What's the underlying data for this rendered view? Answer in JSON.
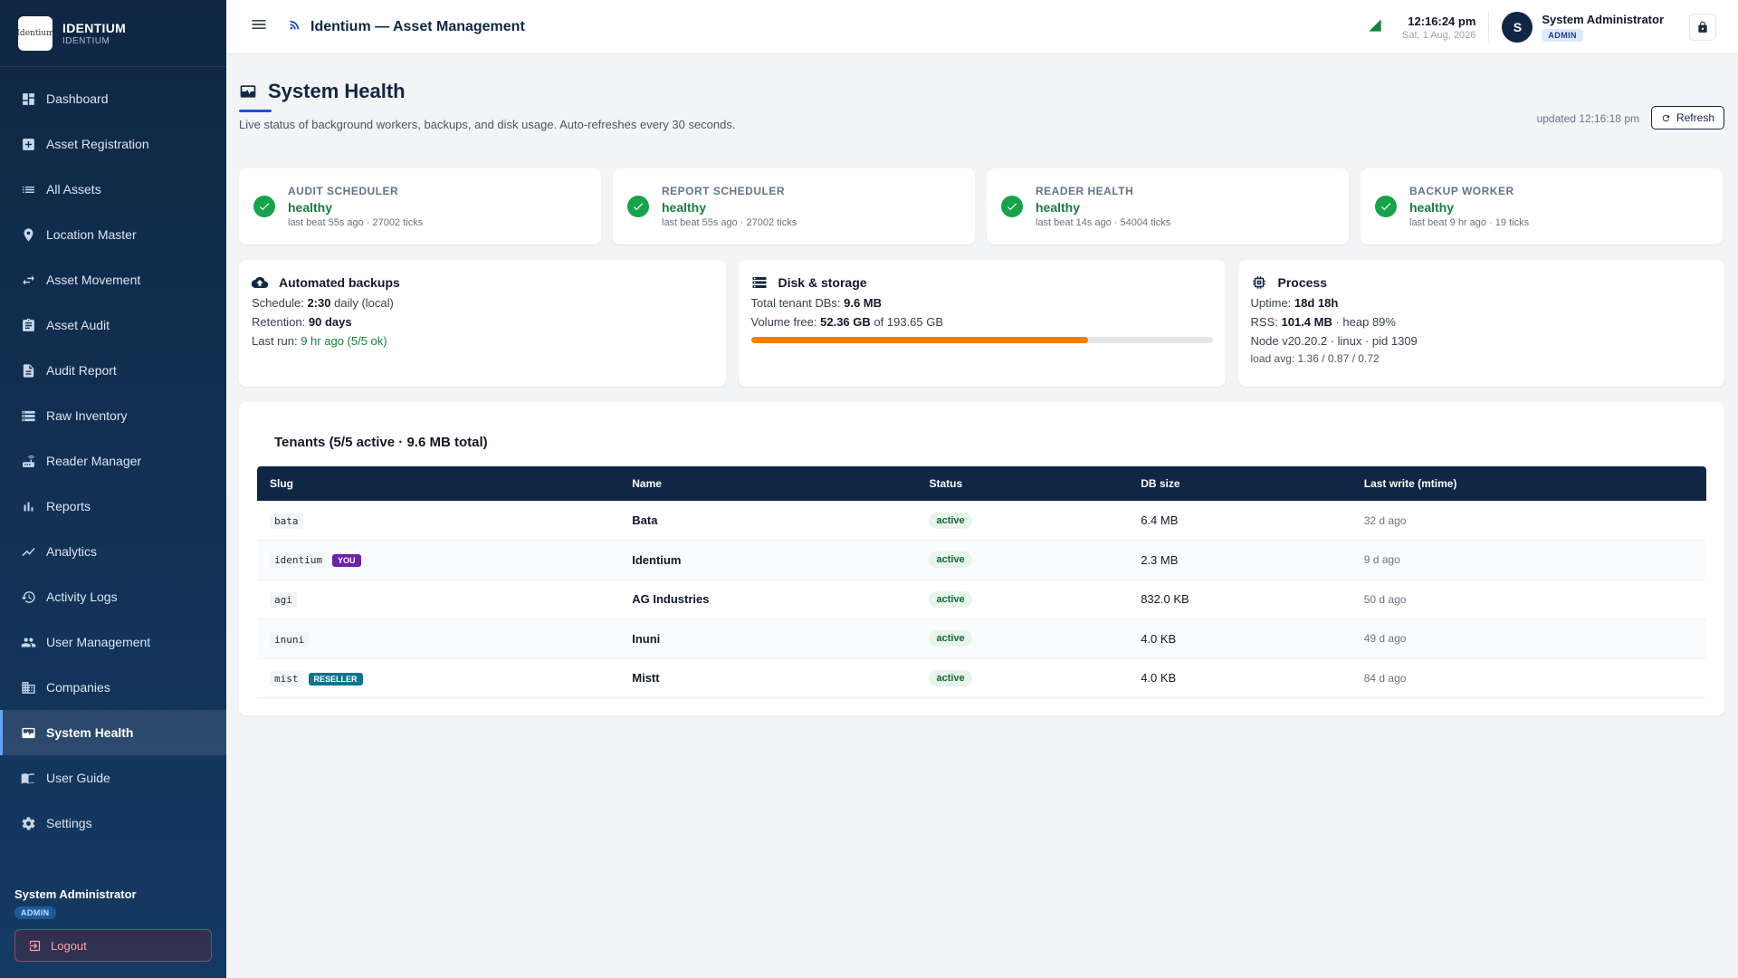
{
  "brand": {
    "logo_text": "Identium",
    "name": "IDENTIUM",
    "sub": "IDENTIUM"
  },
  "sidebar": {
    "items": [
      {
        "label": "Dashboard",
        "icon": "dashboard-icon"
      },
      {
        "label": "Asset Registration",
        "icon": "add-box-icon"
      },
      {
        "label": "All Assets",
        "icon": "list-icon"
      },
      {
        "label": "Location Master",
        "icon": "location-pin-icon"
      },
      {
        "label": "Asset Movement",
        "icon": "swap-arrows-icon"
      },
      {
        "label": "Asset Audit",
        "icon": "clipboard-icon"
      },
      {
        "label": "Audit Report",
        "icon": "document-icon"
      },
      {
        "label": "Raw Inventory",
        "icon": "storage-icon"
      },
      {
        "label": "Reader Manager",
        "icon": "router-icon"
      },
      {
        "label": "Reports",
        "icon": "bar-chart-icon"
      },
      {
        "label": "Analytics",
        "icon": "trend-icon"
      },
      {
        "label": "Activity Logs",
        "icon": "history-icon"
      },
      {
        "label": "User Management",
        "icon": "people-icon"
      },
      {
        "label": "Companies",
        "icon": "building-icon"
      },
      {
        "label": "System Health",
        "icon": "health-monitor-icon",
        "active": true
      },
      {
        "label": "User Guide",
        "icon": "book-icon"
      },
      {
        "label": "Settings",
        "icon": "gear-icon"
      }
    ],
    "user": {
      "name": "System Administrator",
      "role": "ADMIN"
    },
    "logout_label": "Logout"
  },
  "header": {
    "title": "Identium — Asset Management",
    "time": "12:16:24 pm",
    "date": "Sat, 1 Aug, 2026",
    "user_initial": "S",
    "user_name": "System Administrator",
    "user_role": "ADMIN"
  },
  "page": {
    "title": "System Health",
    "subtitle": "Live status of background workers, backups, and disk usage. Auto-refreshes every 30 seconds.",
    "updated": "updated 12:16:18 pm",
    "refresh_label": "Refresh"
  },
  "workers": [
    {
      "label": "AUDIT SCHEDULER",
      "status": "healthy",
      "meta": "last beat 55s ago · 27002 ticks"
    },
    {
      "label": "REPORT SCHEDULER",
      "status": "healthy",
      "meta": "last beat 55s ago · 27002 ticks"
    },
    {
      "label": "READER HEALTH",
      "status": "healthy",
      "meta": "last beat 14s ago · 54004 ticks"
    },
    {
      "label": "BACKUP WORKER",
      "status": "healthy",
      "meta": "last beat 9 hr ago · 19 ticks"
    }
  ],
  "backups": {
    "title": "Automated backups",
    "schedule_label": "Schedule:",
    "schedule_value": "2:30",
    "schedule_suffix": "daily (local)",
    "retention_label": "Retention:",
    "retention_value": "90 days",
    "lastrun_label": "Last run:",
    "lastrun_value": "9 hr ago (5/5 ok)"
  },
  "disk": {
    "title": "Disk & storage",
    "total_label": "Total tenant DBs:",
    "total_value": "9.6 MB",
    "free_label": "Volume free:",
    "free_value": "52.36 GB",
    "free_suffix": "of 193.65 GB",
    "used_fraction": 0.73
  },
  "process": {
    "title": "Process",
    "uptime_label": "Uptime:",
    "uptime_value": "18d 18h",
    "rss_label": "RSS:",
    "rss_value": "101.4 MB",
    "rss_suffix": "· heap 89%",
    "node_line": "Node v20.20.2 · linux · pid 1309",
    "load_line": "load avg: 1.36 / 0.87 / 0.72"
  },
  "tenants": {
    "title": "Tenants (5/5 active · 9.6 MB total)",
    "columns": [
      "Slug",
      "Name",
      "Status",
      "DB size",
      "Last write (mtime)"
    ],
    "rows": [
      {
        "slug": "bata",
        "tag": "",
        "name": "Bata",
        "status": "active",
        "size": "6.4 MB",
        "last": "32 d ago"
      },
      {
        "slug": "identium",
        "tag": "YOU",
        "name": "Identium",
        "status": "active",
        "size": "2.3 MB",
        "last": "9 d ago"
      },
      {
        "slug": "agi",
        "tag": "",
        "name": "AG Industries",
        "status": "active",
        "size": "832.0 KB",
        "last": "50 d ago"
      },
      {
        "slug": "inuni",
        "tag": "",
        "name": "Inuni",
        "status": "active",
        "size": "4.0 KB",
        "last": "49 d ago"
      },
      {
        "slug": "mist",
        "tag": "RESELLER",
        "name": "Mistt",
        "status": "active",
        "size": "4.0 KB",
        "last": "84 d ago"
      }
    ]
  },
  "colors": {
    "navy": "#0f2744",
    "healthy": "#15803d",
    "disk_bar": "#f07e00",
    "accent": "#1d4ed8"
  }
}
